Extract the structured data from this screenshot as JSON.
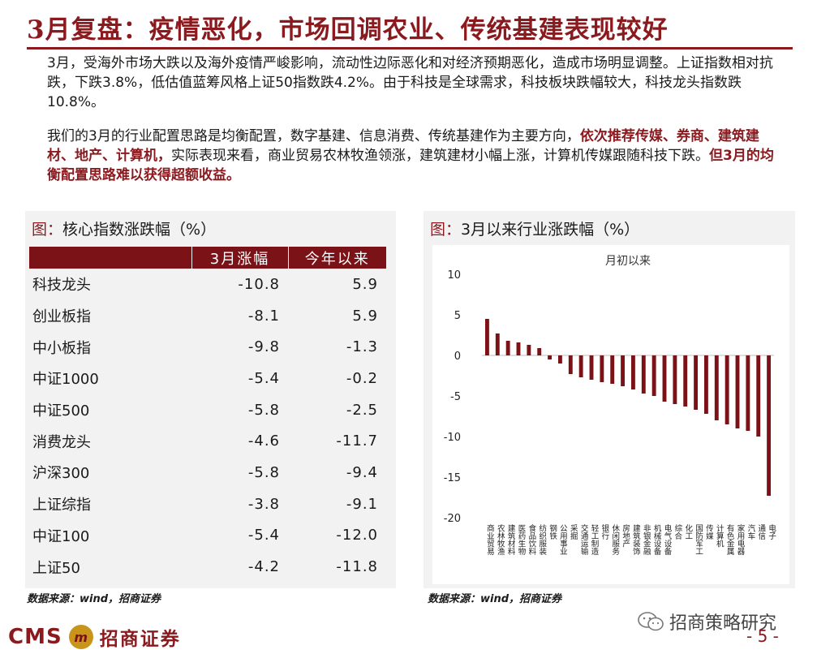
{
  "title": "3月复盘：疫情恶化，市场回调农业、传统基建表现较好",
  "para1": "3月，受海外市场大跌以及海外疫情严峻影响，流动性边际恶化和对经济预期恶化，造成市场明显调整。上证指数相对抗跌，下跌3.8%，低估值蓝筹风格上证50指数跌4.2%。由于科技是全球需求，科技板块跌幅较大，科技龙头指数跌10.8%。",
  "para2": {
    "a": "我们的3月的行业配置思路是均衡配置，数字基建、信息消费、传统基建作为主要方向，",
    "b": "依次推荐传媒、券商、建筑建材、地产、计算机，",
    "c": "实际表现来看，商业贸易农林牧渔领涨，建筑建材小幅上涨，计算机传媒跟随科技下跌。",
    "d": "但3月的均衡配置思路难以获得超额收益。"
  },
  "left_panel": {
    "title_prefix": "图：",
    "title": "核心指数涨跌幅（%）",
    "columns": [
      "3月涨幅",
      "今年以来"
    ],
    "rows": [
      {
        "name": "科技龙头",
        "march": "-10.8",
        "ytd": "5.9"
      },
      {
        "name": "创业板指",
        "march": "-8.1",
        "ytd": "5.9"
      },
      {
        "name": "中小板指",
        "march": "-9.8",
        "ytd": "-1.3"
      },
      {
        "name": "中证1000",
        "march": "-5.4",
        "ytd": "-0.2"
      },
      {
        "name": "中证500",
        "march": "-5.8",
        "ytd": "-2.5"
      },
      {
        "name": "消费龙头",
        "march": "-4.6",
        "ytd": "-11.7"
      },
      {
        "name": "沪深300",
        "march": "-5.8",
        "ytd": "-9.4"
      },
      {
        "name": "上证综指",
        "march": "-3.8",
        "ytd": "-9.1"
      },
      {
        "name": "中证100",
        "march": "-5.4",
        "ytd": "-12.0"
      },
      {
        "name": "上证50",
        "march": "-4.2",
        "ytd": "-11.8"
      }
    ],
    "source": "数据来源：wind，招商证券"
  },
  "right_panel": {
    "title_prefix": "图：",
    "title": "3月以来行业涨跌幅（%）",
    "source": "数据来源：wind，招商证券"
  },
  "chart_data": {
    "type": "bar",
    "title": "月初以来",
    "ylim": [
      -20,
      10
    ],
    "yticks": [
      10,
      5,
      0,
      -5,
      -10,
      -15,
      -20
    ],
    "grid": false,
    "categories": [
      "商业贸易",
      "农林牧渔",
      "建筑材料",
      "医药生物",
      "食品饮料",
      "纺织服装",
      "钢铁",
      "公用事业",
      "采掘",
      "交通运输",
      "轻工制造",
      "银行",
      "休闲服务",
      "房地产",
      "建筑装饰",
      "非银金融",
      "机械设备",
      "电气设备",
      "综合",
      "化工",
      "国防军工",
      "传媒",
      "计算机",
      "有色金属",
      "家用电器",
      "汽车",
      "通信",
      "电子"
    ],
    "values": [
      4.5,
      2.7,
      1.8,
      1.6,
      1.3,
      0.9,
      -0.5,
      -1.0,
      -2.3,
      -2.7,
      -3.0,
      -3.3,
      -3.5,
      -3.8,
      -4.2,
      -4.7,
      -5.0,
      -5.7,
      -6.0,
      -6.3,
      -6.7,
      -7.2,
      -8.0,
      -8.5,
      -9.0,
      -9.3,
      -10.0,
      -17.3
    ],
    "bar_color": "#7a1217"
  },
  "footer": {
    "cms": "CMS",
    "logo_mark": "m",
    "logo_cn": "招商证券",
    "watermark": "招商策略研究",
    "page": "- 5 -"
  }
}
